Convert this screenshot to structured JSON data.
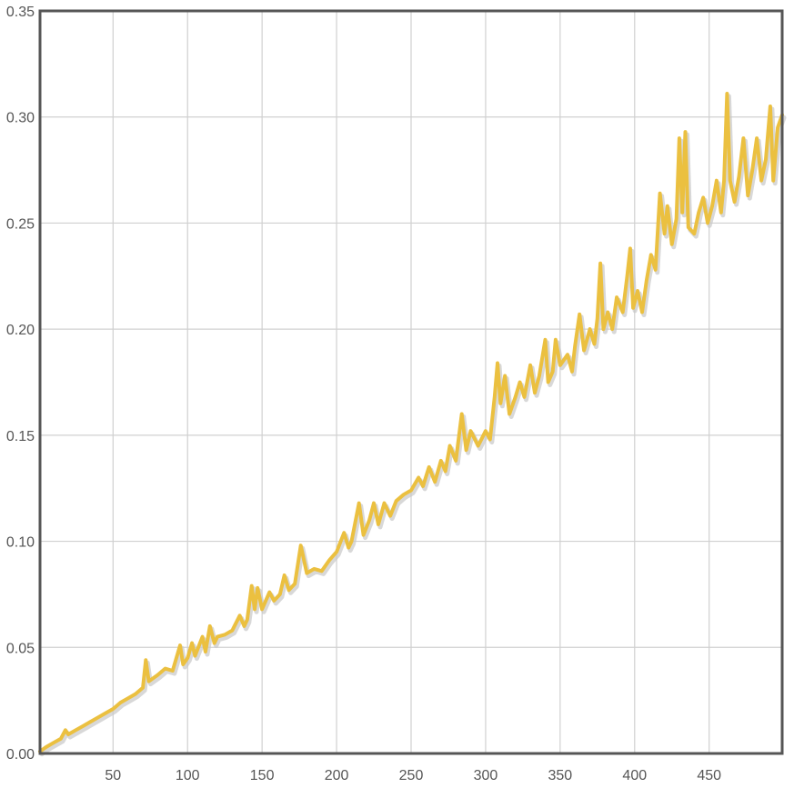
{
  "chart_data": {
    "type": "line",
    "title": "",
    "xlabel": "",
    "ylabel": "",
    "xlim": [
      1,
      499
    ],
    "ylim": [
      0,
      0.35
    ],
    "x_ticks": [
      50,
      100,
      150,
      200,
      250,
      300,
      350,
      400,
      450
    ],
    "x_tick_labels": [
      "50",
      "100",
      "150",
      "200",
      "250",
      "300",
      "350",
      "400",
      "450"
    ],
    "y_ticks": [
      0,
      0.05,
      0.1,
      0.15,
      0.2,
      0.25,
      0.3,
      0.35
    ],
    "y_tick_labels": [
      "0.00",
      "0.05",
      "0.10",
      "0.15",
      "0.20",
      "0.25",
      "0.30",
      "0.35"
    ],
    "grid": true,
    "legend": "none",
    "series": [
      {
        "color": "#ebc040",
        "shadow_color": "#c8c8c8",
        "points": [
          [
            1,
            0.001
          ],
          [
            5,
            0.003
          ],
          [
            10,
            0.005
          ],
          [
            15,
            0.007
          ],
          [
            18,
            0.011
          ],
          [
            20,
            0.009
          ],
          [
            25,
            0.011
          ],
          [
            30,
            0.013
          ],
          [
            35,
            0.015
          ],
          [
            40,
            0.017
          ],
          [
            45,
            0.019
          ],
          [
            50,
            0.021
          ],
          [
            55,
            0.024
          ],
          [
            60,
            0.026
          ],
          [
            65,
            0.028
          ],
          [
            70,
            0.031
          ],
          [
            72,
            0.044
          ],
          [
            74,
            0.034
          ],
          [
            80,
            0.037
          ],
          [
            85,
            0.04
          ],
          [
            90,
            0.039
          ],
          [
            95,
            0.051
          ],
          [
            97,
            0.042
          ],
          [
            100,
            0.045
          ],
          [
            103,
            0.052
          ],
          [
            105,
            0.046
          ],
          [
            110,
            0.055
          ],
          [
            112,
            0.048
          ],
          [
            115,
            0.06
          ],
          [
            118,
            0.052
          ],
          [
            120,
            0.055
          ],
          [
            125,
            0.056
          ],
          [
            130,
            0.058
          ],
          [
            135,
            0.065
          ],
          [
            138,
            0.06
          ],
          [
            140,
            0.063
          ],
          [
            143,
            0.079
          ],
          [
            145,
            0.068
          ],
          [
            147,
            0.078
          ],
          [
            150,
            0.068
          ],
          [
            155,
            0.076
          ],
          [
            158,
            0.072
          ],
          [
            162,
            0.075
          ],
          [
            165,
            0.084
          ],
          [
            168,
            0.077
          ],
          [
            172,
            0.08
          ],
          [
            176,
            0.098
          ],
          [
            180,
            0.085
          ],
          [
            185,
            0.087
          ],
          [
            190,
            0.086
          ],
          [
            195,
            0.091
          ],
          [
            200,
            0.095
          ],
          [
            205,
            0.104
          ],
          [
            208,
            0.097
          ],
          [
            210,
            0.1
          ],
          [
            215,
            0.118
          ],
          [
            218,
            0.103
          ],
          [
            222,
            0.11
          ],
          [
            225,
            0.118
          ],
          [
            228,
            0.108
          ],
          [
            232,
            0.118
          ],
          [
            236,
            0.112
          ],
          [
            240,
            0.119
          ],
          [
            245,
            0.122
          ],
          [
            250,
            0.124
          ],
          [
            255,
            0.13
          ],
          [
            258,
            0.126
          ],
          [
            262,
            0.135
          ],
          [
            266,
            0.128
          ],
          [
            270,
            0.138
          ],
          [
            273,
            0.133
          ],
          [
            276,
            0.145
          ],
          [
            280,
            0.138
          ],
          [
            284,
            0.16
          ],
          [
            287,
            0.143
          ],
          [
            290,
            0.152
          ],
          [
            295,
            0.145
          ],
          [
            300,
            0.152
          ],
          [
            303,
            0.148
          ],
          [
            306,
            0.168
          ],
          [
            308,
            0.184
          ],
          [
            310,
            0.165
          ],
          [
            313,
            0.178
          ],
          [
            316,
            0.16
          ],
          [
            320,
            0.168
          ],
          [
            323,
            0.175
          ],
          [
            326,
            0.168
          ],
          [
            330,
            0.183
          ],
          [
            333,
            0.17
          ],
          [
            336,
            0.178
          ],
          [
            340,
            0.195
          ],
          [
            342,
            0.175
          ],
          [
            345,
            0.18
          ],
          [
            347,
            0.195
          ],
          [
            350,
            0.183
          ],
          [
            355,
            0.188
          ],
          [
            358,
            0.18
          ],
          [
            360,
            0.192
          ],
          [
            363,
            0.207
          ],
          [
            366,
            0.19
          ],
          [
            370,
            0.2
          ],
          [
            373,
            0.193
          ],
          [
            375,
            0.205
          ],
          [
            377,
            0.231
          ],
          [
            379,
            0.2
          ],
          [
            382,
            0.208
          ],
          [
            385,
            0.2
          ],
          [
            388,
            0.215
          ],
          [
            392,
            0.208
          ],
          [
            395,
            0.225
          ],
          [
            397,
            0.238
          ],
          [
            399,
            0.21
          ],
          [
            402,
            0.218
          ],
          [
            405,
            0.208
          ],
          [
            408,
            0.223
          ],
          [
            411,
            0.235
          ],
          [
            414,
            0.228
          ],
          [
            417,
            0.264
          ],
          [
            420,
            0.245
          ],
          [
            422,
            0.258
          ],
          [
            425,
            0.24
          ],
          [
            428,
            0.252
          ],
          [
            430,
            0.29
          ],
          [
            432,
            0.255
          ],
          [
            434,
            0.293
          ],
          [
            436,
            0.248
          ],
          [
            440,
            0.245
          ],
          [
            443,
            0.255
          ],
          [
            446,
            0.262
          ],
          [
            449,
            0.25
          ],
          [
            452,
            0.258
          ],
          [
            455,
            0.27
          ],
          [
            458,
            0.255
          ],
          [
            460,
            0.27
          ],
          [
            462,
            0.311
          ],
          [
            464,
            0.27
          ],
          [
            467,
            0.26
          ],
          [
            470,
            0.272
          ],
          [
            473,
            0.29
          ],
          [
            476,
            0.263
          ],
          [
            479,
            0.275
          ],
          [
            482,
            0.29
          ],
          [
            485,
            0.27
          ],
          [
            488,
            0.28
          ],
          [
            491,
            0.305
          ],
          [
            493,
            0.27
          ],
          [
            496,
            0.295
          ],
          [
            499,
            0.301
          ]
        ]
      }
    ]
  }
}
